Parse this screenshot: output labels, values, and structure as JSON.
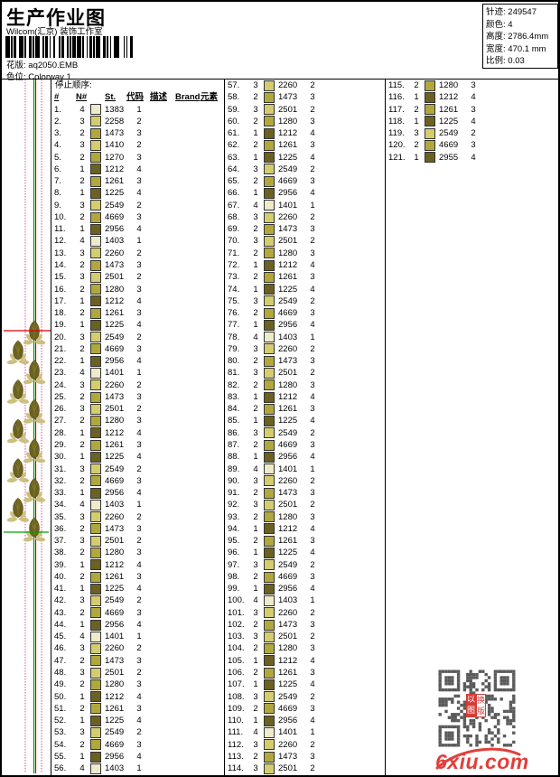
{
  "header": {
    "title": "生产作业图",
    "subtitle": "Wilcom(汇京) 装饰工作室",
    "pattern_label": "花版:",
    "pattern_value": "aq2050.EMB",
    "colorway_label": "色位:",
    "colorway_value": "Colorway 1"
  },
  "info": {
    "rows": [
      {
        "label": "针迹:",
        "value": "249547"
      },
      {
        "label": "颜色:",
        "value": "4"
      },
      {
        "label": "高度:",
        "value": "2786.4mm"
      },
      {
        "label": "宽度:",
        "value": "470.1 mm"
      },
      {
        "label": "比例:",
        "value": "0.03"
      }
    ]
  },
  "table": {
    "stop_label": "停止顺序:",
    "headers": [
      "#",
      "N#",
      "St.",
      "代码",
      "描述",
      "Brand",
      "元素"
    ],
    "palette": {
      "1": "#6b6120",
      "2": "#b1a83c",
      "3": "#d3cd6e",
      "4": "#edebc9"
    },
    "rows": [
      [
        4,
        1383,
        1
      ],
      [
        3,
        2258,
        2
      ],
      [
        2,
        1473,
        3
      ],
      [
        3,
        1410,
        2
      ],
      [
        2,
        1270,
        3
      ],
      [
        1,
        1212,
        4
      ],
      [
        2,
        1261,
        3
      ],
      [
        1,
        1225,
        4
      ],
      [
        3,
        2549,
        2
      ],
      [
        2,
        4669,
        3
      ],
      [
        1,
        2956,
        4
      ],
      [
        4,
        1403,
        1
      ],
      [
        3,
        2260,
        2
      ],
      [
        2,
        1473,
        3
      ],
      [
        3,
        2501,
        2
      ],
      [
        2,
        1280,
        3
      ],
      [
        1,
        1212,
        4
      ],
      [
        2,
        1261,
        3
      ],
      [
        1,
        1225,
        4
      ],
      [
        3,
        2549,
        2
      ],
      [
        2,
        4669,
        3
      ],
      [
        1,
        2956,
        4
      ],
      [
        4,
        1401,
        1
      ],
      [
        3,
        2260,
        2
      ],
      [
        2,
        1473,
        3
      ],
      [
        3,
        2501,
        2
      ],
      [
        2,
        1280,
        3
      ],
      [
        1,
        1212,
        4
      ],
      [
        2,
        1261,
        3
      ],
      [
        1,
        1225,
        4
      ],
      [
        3,
        2549,
        2
      ],
      [
        2,
        4669,
        3
      ],
      [
        1,
        2956,
        4
      ],
      [
        4,
        1403,
        1
      ],
      [
        3,
        2260,
        2
      ],
      [
        2,
        1473,
        3
      ],
      [
        3,
        2501,
        2
      ],
      [
        2,
        1280,
        3
      ],
      [
        1,
        1212,
        4
      ],
      [
        2,
        1261,
        3
      ],
      [
        1,
        1225,
        4
      ],
      [
        3,
        2549,
        2
      ],
      [
        2,
        4669,
        3
      ],
      [
        1,
        2956,
        4
      ],
      [
        4,
        1401,
        1
      ],
      [
        3,
        2260,
        2
      ],
      [
        2,
        1473,
        3
      ],
      [
        3,
        2501,
        2
      ],
      [
        2,
        1280,
        3
      ],
      [
        1,
        1212,
        4
      ],
      [
        2,
        1261,
        3
      ],
      [
        1,
        1225,
        4
      ],
      [
        3,
        2549,
        2
      ],
      [
        2,
        4669,
        3
      ],
      [
        1,
        2956,
        4
      ],
      [
        4,
        1403,
        1
      ],
      [
        3,
        2260,
        2
      ],
      [
        2,
        1473,
        3
      ],
      [
        3,
        2501,
        2
      ],
      [
        2,
        1280,
        3
      ],
      [
        1,
        1212,
        4
      ],
      [
        2,
        1261,
        3
      ],
      [
        1,
        1225,
        4
      ],
      [
        3,
        2549,
        2
      ],
      [
        2,
        4669,
        3
      ],
      [
        1,
        2956,
        4
      ],
      [
        4,
        1401,
        1
      ],
      [
        3,
        2260,
        2
      ],
      [
        2,
        1473,
        3
      ],
      [
        3,
        2501,
        2
      ],
      [
        2,
        1280,
        3
      ],
      [
        1,
        1212,
        4
      ],
      [
        2,
        1261,
        3
      ],
      [
        1,
        1225,
        4
      ],
      [
        3,
        2549,
        2
      ],
      [
        2,
        4669,
        3
      ],
      [
        1,
        2956,
        4
      ],
      [
        4,
        1403,
        1
      ],
      [
        3,
        2260,
        2
      ],
      [
        2,
        1473,
        3
      ],
      [
        3,
        2501,
        2
      ],
      [
        2,
        1280,
        3
      ],
      [
        1,
        1212,
        4
      ],
      [
        2,
        1261,
        3
      ],
      [
        1,
        1225,
        4
      ],
      [
        3,
        2549,
        2
      ],
      [
        2,
        4669,
        3
      ],
      [
        1,
        2956,
        4
      ],
      [
        4,
        1401,
        1
      ],
      [
        3,
        2260,
        2
      ],
      [
        2,
        1473,
        3
      ],
      [
        3,
        2501,
        2
      ],
      [
        2,
        1280,
        3
      ],
      [
        1,
        1212,
        4
      ],
      [
        2,
        1261,
        3
      ],
      [
        1,
        1225,
        4
      ],
      [
        3,
        2549,
        2
      ],
      [
        2,
        4669,
        3
      ],
      [
        1,
        2956,
        4
      ],
      [
        4,
        1403,
        1
      ],
      [
        3,
        2260,
        2
      ],
      [
        2,
        1473,
        3
      ],
      [
        3,
        2501,
        2
      ],
      [
        2,
        1280,
        3
      ],
      [
        1,
        1212,
        4
      ],
      [
        2,
        1261,
        3
      ],
      [
        1,
        1225,
        4
      ],
      [
        3,
        2549,
        2
      ],
      [
        2,
        4669,
        3
      ],
      [
        1,
        2956,
        4
      ],
      [
        4,
        1401,
        1
      ],
      [
        3,
        2260,
        2
      ],
      [
        2,
        1473,
        3
      ],
      [
        3,
        2501,
        2
      ],
      [
        2,
        1280,
        3
      ],
      [
        1,
        1212,
        4
      ],
      [
        2,
        1261,
        3
      ],
      [
        1,
        1225,
        4
      ],
      [
        3,
        2549,
        2
      ],
      [
        2,
        4669,
        3
      ],
      [
        1,
        2955,
        4
      ]
    ],
    "column_splits": [
      56,
      114,
      121
    ]
  },
  "watermark": {
    "logo_text": "6xiu.com",
    "stamp_col1": [
      "以",
      "图"
    ],
    "stamp_col2": [
      "换",
      "版"
    ]
  }
}
